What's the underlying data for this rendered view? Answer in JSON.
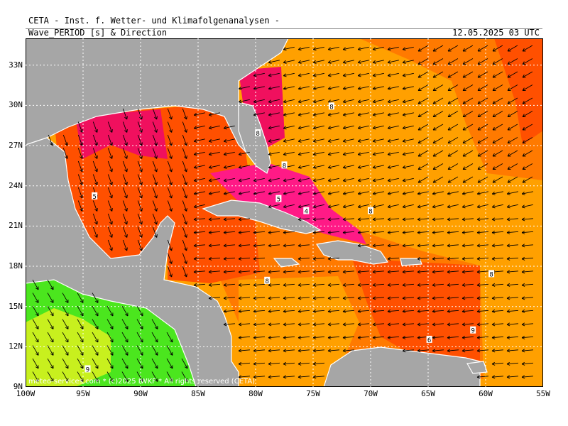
{
  "header": {
    "source_line": "CETA - Inst. f. Wetter- und Klimafolgenanalysen -",
    "parameter_line": "Wave_PERIOD [s] & Direction",
    "timestamp": "12.05.2025 03 UTC"
  },
  "credit": "meteo-services.com * (c)2025 IWKF * All rights reserved (CETA)",
  "axes": {
    "lat_labels": [
      "33N",
      "30N",
      "27N",
      "24N",
      "21N",
      "18N",
      "15N",
      "12N",
      "9N"
    ],
    "lon_labels": [
      "100W",
      "95W",
      "90W",
      "85W",
      "80W",
      "75W",
      "70W",
      "65W",
      "60W",
      "55W"
    ],
    "lat_range": [
      9,
      35
    ],
    "lon_range": [
      -100,
      -55
    ]
  },
  "period_labels": [
    {
      "text": "8",
      "lat": 29.9,
      "lon": -73.4
    },
    {
      "text": "8",
      "lat": 27.9,
      "lon": -79.8
    },
    {
      "text": "8",
      "lat": 25.5,
      "lon": -77.5
    },
    {
      "text": "5",
      "lat": 23.2,
      "lon": -94.0
    },
    {
      "text": "5",
      "lat": 23.0,
      "lon": -78.0
    },
    {
      "text": "4",
      "lat": 22.1,
      "lon": -75.6
    },
    {
      "text": "8",
      "lat": 22.1,
      "lon": -70.0
    },
    {
      "text": "8",
      "lat": 17.4,
      "lon": -59.5
    },
    {
      "text": "8",
      "lat": 16.9,
      "lon": -79.0
    },
    {
      "text": "6",
      "lat": 12.5,
      "lon": -64.9
    },
    {
      "text": "9",
      "lat": 10.3,
      "lon": -94.6
    },
    {
      "text": "9",
      "lat": 13.2,
      "lon": -61.1
    }
  ],
  "colors": {
    "land": "#a6a6a6",
    "period_4_5": "#ff1a86",
    "period_5_6": "#f0105e",
    "period_6_7": "#ff5000",
    "period_7_8": "#ff7a00",
    "period_8_9": "#ffa000",
    "period_9_10": "#ffb400",
    "period_10_plus_green": "#4be61e",
    "period_10_plus_yellowgreen": "#c8f01e",
    "arrow": "#000000",
    "grid": "#ffffff"
  }
}
